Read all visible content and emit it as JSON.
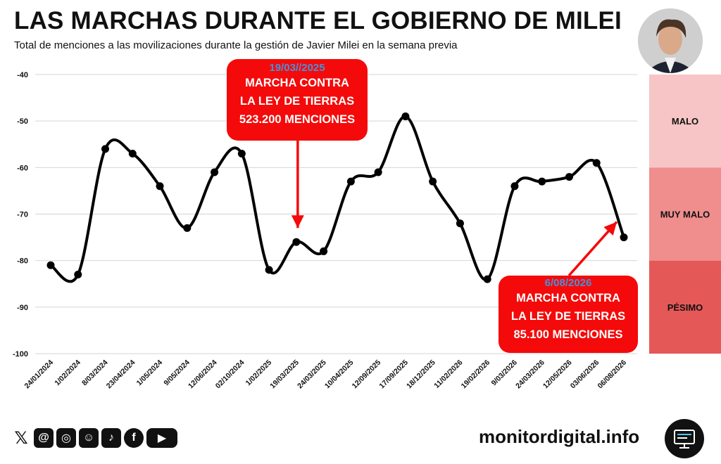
{
  "header": {
    "title": "LAS MARCHAS DURANTE EL GOBIERNO DE MILEI",
    "subtitle": "Total de menciones a las movilizaciones durante la gestión de Javier Milei en la semana previa"
  },
  "chart_data": {
    "type": "line",
    "categories": [
      "24/01/2024",
      "1/02/2024",
      "8/03/2024",
      "23/04/2024",
      "1/05/2024",
      "9/05/2024",
      "12/06/2024",
      "02/10/2024",
      "1/02/2025",
      "19/03/2025",
      "24/03/2025",
      "10/04/2025",
      "12/09/2025",
      "17/09/2025",
      "18/12/2025",
      "11/02/2026",
      "19/02/2026",
      "9/03/2026",
      "24/03/2026",
      "12/05/2026",
      "03/06/2026",
      "06/08/2026"
    ],
    "values": [
      -81,
      -83,
      -56,
      -57,
      -64,
      -73,
      -61,
      -57,
      -82,
      -76,
      -78,
      -63,
      -61,
      -49,
      -63,
      -72,
      -84,
      -64,
      -63,
      -62,
      -59,
      -75
    ],
    "ylim": [
      -100,
      -40
    ],
    "yticks": [
      -40,
      -50,
      -60,
      -70,
      -80,
      -90,
      -100
    ],
    "grid": true,
    "line_color": "#000000",
    "zones": [
      {
        "label": "MALO",
        "from": -60,
        "to": -40,
        "color": "#f7c5c5"
      },
      {
        "label": "MUY MALO",
        "from": -80,
        "to": -60,
        "color": "#f08e8e"
      },
      {
        "label": "PÉSIMO",
        "from": -100,
        "to": -80,
        "color": "#e55858"
      }
    ],
    "annotations": [
      {
        "date": "19/03//2025",
        "lines": [
          "MARCHA CONTRA",
          "LA LEY DE TIERRAS",
          "523.200 MENCIONES"
        ],
        "target_index": 9
      },
      {
        "date": "6/08/2026",
        "lines": [
          "MARCHA CONTRA",
          "LA LEY DE TIERRAS",
          "85.100 MENCIONES"
        ],
        "target_index": 21
      }
    ]
  },
  "footer": {
    "site": "monitordigital.info",
    "social_icons": [
      "x-icon",
      "threads-icon",
      "instagram-icon",
      "reddit-icon",
      "tiktok-icon",
      "facebook-icon",
      "youtube-icon"
    ]
  },
  "colors": {
    "accent_red": "#f40a0a",
    "date_blue": "#4a90d9"
  }
}
